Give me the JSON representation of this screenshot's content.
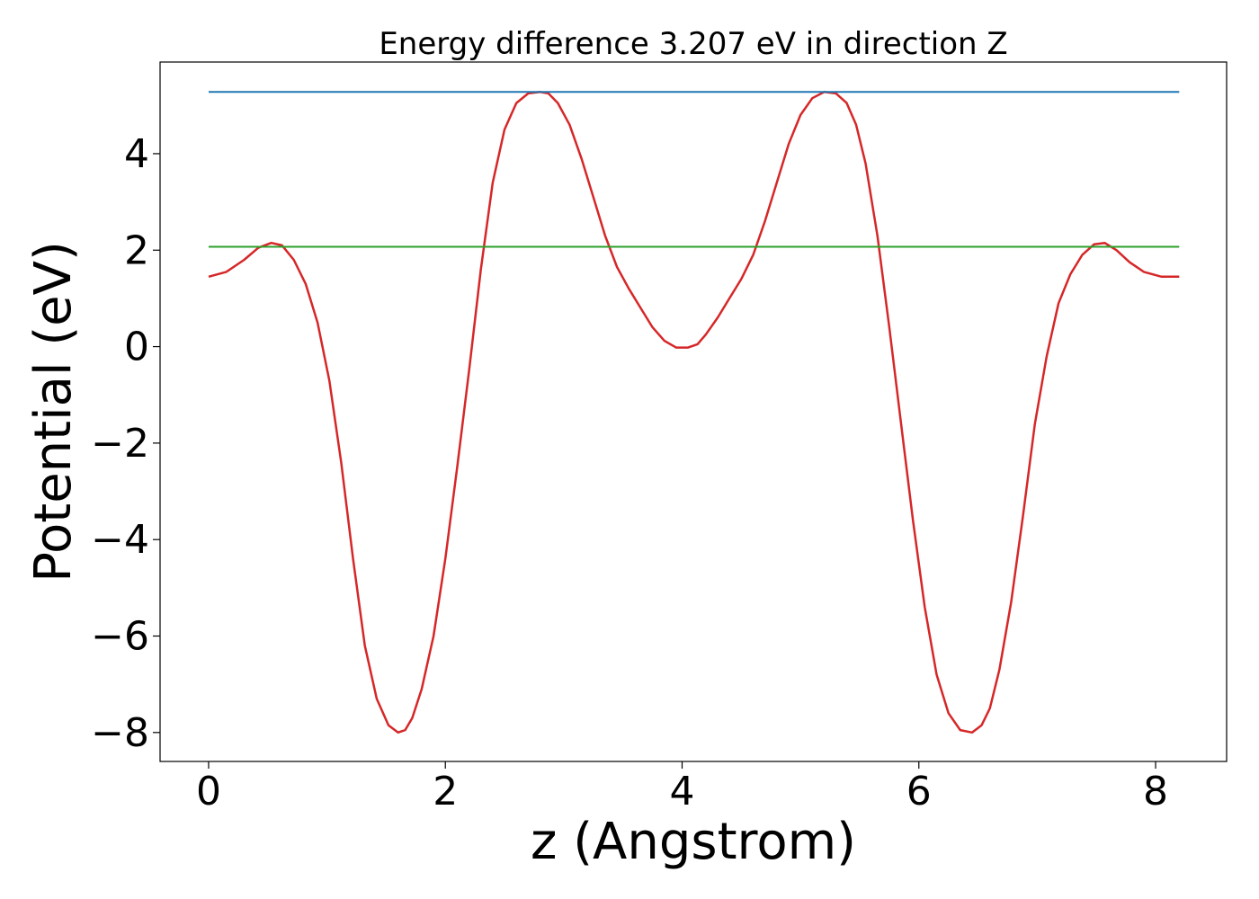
{
  "chart_data": {
    "type": "line",
    "title": "Energy difference 3.207 eV in direction Z",
    "xlabel": "z (Angstrom)",
    "ylabel": "Potential (eV)",
    "xlim": [
      -0.41,
      8.6
    ],
    "ylim": [
      -8.6,
      5.9
    ],
    "xticks": [
      0,
      2,
      4,
      6,
      8
    ],
    "xtick_labels": [
      "0",
      "2",
      "4",
      "6",
      "8"
    ],
    "yticks": [
      -8,
      -6,
      -4,
      -2,
      0,
      2,
      4
    ],
    "ytick_labels": [
      "−8",
      "−6",
      "−4",
      "−2",
      "0",
      "2",
      "4"
    ],
    "grid": false,
    "series": [
      {
        "color": "#d62728",
        "x": [
          0.0,
          0.15,
          0.3,
          0.42,
          0.53,
          0.62,
          0.72,
          0.82,
          0.92,
          1.02,
          1.12,
          1.22,
          1.32,
          1.42,
          1.52,
          1.6,
          1.66,
          1.72,
          1.8,
          1.9,
          2.0,
          2.1,
          2.2,
          2.3,
          2.4,
          2.5,
          2.6,
          2.7,
          2.8,
          2.87,
          2.95,
          3.05,
          3.15,
          3.25,
          3.35,
          3.45,
          3.55,
          3.65,
          3.75,
          3.85,
          3.95,
          4.05,
          4.13,
          4.2,
          4.3,
          4.4,
          4.5,
          4.6,
          4.7,
          4.8,
          4.9,
          5.0,
          5.1,
          5.2,
          5.3,
          5.39,
          5.47,
          5.55,
          5.65,
          5.75,
          5.85,
          5.95,
          6.05,
          6.15,
          6.25,
          6.35,
          6.45,
          6.53,
          6.6,
          6.68,
          6.78,
          6.88,
          6.98,
          7.08,
          7.18,
          7.28,
          7.38,
          7.48,
          7.57,
          7.67,
          7.78,
          7.9,
          8.05,
          8.2
        ],
        "y": [
          1.45,
          1.55,
          1.8,
          2.05,
          2.15,
          2.1,
          1.8,
          1.3,
          0.5,
          -0.7,
          -2.4,
          -4.4,
          -6.2,
          -7.3,
          -7.85,
          -8.0,
          -7.95,
          -7.7,
          -7.1,
          -6.0,
          -4.4,
          -2.5,
          -0.5,
          1.6,
          3.4,
          4.5,
          5.05,
          5.25,
          5.28,
          5.25,
          5.05,
          4.6,
          3.9,
          3.1,
          2.3,
          1.65,
          1.2,
          0.8,
          0.4,
          0.12,
          -0.02,
          -0.02,
          0.05,
          0.25,
          0.6,
          1.0,
          1.4,
          1.9,
          2.6,
          3.4,
          4.2,
          4.8,
          5.15,
          5.28,
          5.25,
          5.05,
          4.6,
          3.8,
          2.3,
          0.4,
          -1.6,
          -3.6,
          -5.4,
          -6.8,
          -7.6,
          -7.95,
          -8.0,
          -7.85,
          -7.5,
          -6.7,
          -5.3,
          -3.5,
          -1.6,
          -0.2,
          0.9,
          1.5,
          1.9,
          2.12,
          2.15,
          2.0,
          1.75,
          1.55,
          1.45,
          1.45
        ]
      },
      {
        "color": "#1f77b4",
        "x": [
          0.0,
          8.2
        ],
        "y": [
          5.28,
          5.28
        ]
      },
      {
        "color": "#2ca02c",
        "x": [
          0.0,
          8.2
        ],
        "y": [
          2.07,
          2.07
        ]
      }
    ]
  }
}
